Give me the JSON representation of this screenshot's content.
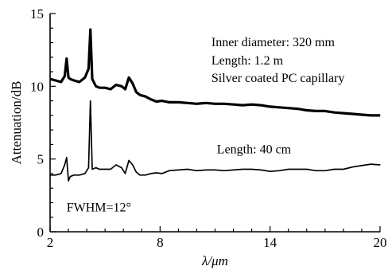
{
  "chart_data": {
    "type": "line",
    "title": "",
    "xlabel": "λ/μm",
    "ylabel": "Attenuation/dB",
    "xlim": [
      2,
      20
    ],
    "ylim": [
      0,
      15
    ],
    "x_ticks": [
      2,
      8,
      14,
      20
    ],
    "y_ticks": [
      0,
      5,
      10,
      15
    ],
    "x_tick_labels": [
      "2",
      "8",
      "14",
      "20"
    ],
    "y_tick_labels": [
      "0",
      "5",
      "10",
      "15"
    ],
    "grid": false,
    "legend": "none",
    "series": [
      {
        "x": [
          2.0,
          2.3,
          2.6,
          2.8,
          2.9,
          3.0,
          3.1,
          3.3,
          3.6,
          3.9,
          4.1,
          4.2,
          4.3,
          4.5,
          4.7,
          5.0,
          5.3,
          5.6,
          5.9,
          6.1,
          6.3,
          6.5,
          6.7,
          6.9,
          7.2,
          7.5,
          7.8,
          8.1,
          8.5,
          9.0,
          9.5,
          10.0,
          10.5,
          11.0,
          11.5,
          12.0,
          12.5,
          13.0,
          13.5,
          14.0,
          14.5,
          15.0,
          15.5,
          16.0,
          16.5,
          17.0,
          17.5,
          18.0,
          18.5,
          19.0,
          19.5,
          20.0
        ],
        "values": [
          10.5,
          10.4,
          10.3,
          10.7,
          11.9,
          10.6,
          10.5,
          10.4,
          10.3,
          10.6,
          11.2,
          13.9,
          10.5,
          10.0,
          9.9,
          9.9,
          9.8,
          10.1,
          10.0,
          9.8,
          10.6,
          10.2,
          9.6,
          9.4,
          9.3,
          9.1,
          8.95,
          9.0,
          8.9,
          8.9,
          8.85,
          8.8,
          8.85,
          8.8,
          8.8,
          8.75,
          8.7,
          8.75,
          8.7,
          8.6,
          8.55,
          8.5,
          8.45,
          8.35,
          8.3,
          8.3,
          8.2,
          8.15,
          8.1,
          8.05,
          8.0,
          8.0
        ]
      },
      {
        "x": [
          2.0,
          2.3,
          2.6,
          2.8,
          2.9,
          3.0,
          3.1,
          3.3,
          3.6,
          3.9,
          4.1,
          4.2,
          4.3,
          4.5,
          4.7,
          5.0,
          5.3,
          5.6,
          5.9,
          6.1,
          6.3,
          6.5,
          6.7,
          6.9,
          7.2,
          7.5,
          7.8,
          8.1,
          8.5,
          9.0,
          9.5,
          10.0,
          10.5,
          11.0,
          11.5,
          12.0,
          12.5,
          13.0,
          13.5,
          14.0,
          14.5,
          15.0,
          15.5,
          16.0,
          16.5,
          17.0,
          17.5,
          18.0,
          18.5,
          19.0,
          19.5,
          20.0
        ],
        "values": [
          3.9,
          3.9,
          4.0,
          4.6,
          5.1,
          3.5,
          3.8,
          3.9,
          3.9,
          4.0,
          4.4,
          9.0,
          4.3,
          4.4,
          4.3,
          4.3,
          4.3,
          4.6,
          4.4,
          4.0,
          4.9,
          4.6,
          4.1,
          3.9,
          3.9,
          4.0,
          4.05,
          4.0,
          4.2,
          4.25,
          4.3,
          4.2,
          4.25,
          4.25,
          4.2,
          4.25,
          4.3,
          4.3,
          4.25,
          4.15,
          4.2,
          4.3,
          4.3,
          4.3,
          4.2,
          4.2,
          4.3,
          4.3,
          4.45,
          4.55,
          4.65,
          4.6
        ]
      }
    ],
    "annotations": [
      {
        "text": "Inner diameter: 320 mm",
        "x": 10.8,
        "y": 12.75
      },
      {
        "text": "Length: 1.2 m",
        "x": 10.8,
        "y": 11.5
      },
      {
        "text": "Silver coated PC capillary",
        "x": 10.8,
        "y": 10.3
      },
      {
        "text": "Length: 40 cm",
        "x": 11.1,
        "y": 5.4
      },
      {
        "text": "FWHM=12°",
        "x": 2.9,
        "y": 1.4
      }
    ],
    "colors": {
      "line": "#000000",
      "axis": "#000000"
    }
  }
}
